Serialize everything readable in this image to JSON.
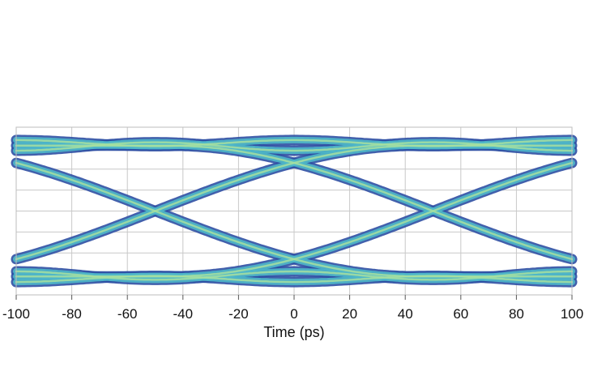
{
  "chart_data": {
    "type": "line",
    "title": "",
    "subtitle": "",
    "xlabel": "Time (ps)",
    "ylabel": "",
    "xlim": [
      -100,
      100
    ],
    "ylim": [
      0,
      1
    ],
    "x_ticks": [
      -100,
      -80,
      -60,
      -40,
      -20,
      0,
      20,
      40,
      60,
      80,
      100
    ],
    "grid": true,
    "legend": "none",
    "description_kind": "eye diagram",
    "unit_interval_ps": 100,
    "crossing_times_ps": [
      -50,
      50
    ],
    "crossing_level": 0.5,
    "upper_rail_level": 0.89,
    "lower_rail_level": 0.11,
    "colors": {
      "outer_band": "#2d4fa3",
      "inner_band": "#4fb8c9",
      "core": "#a6dfa0",
      "grid": "#c8c8c8"
    }
  }
}
